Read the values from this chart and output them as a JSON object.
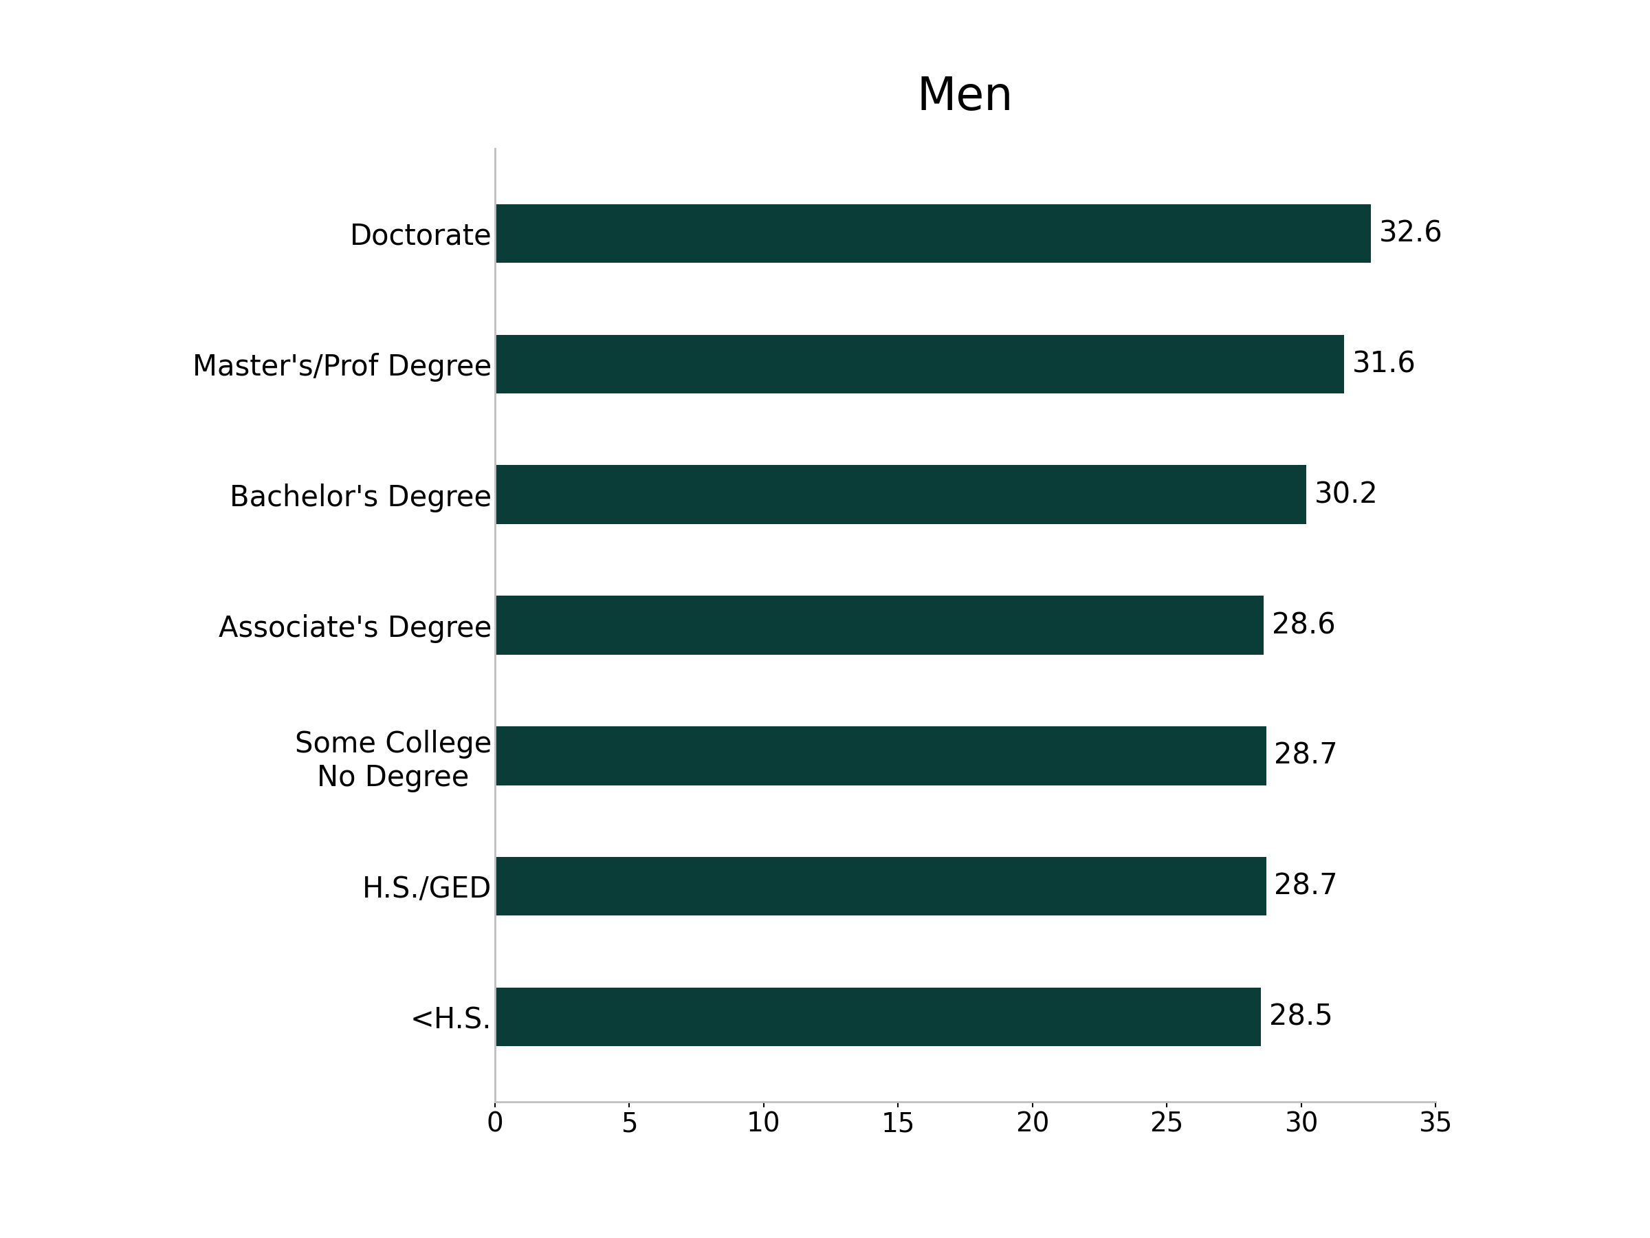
{
  "title": "Men",
  "categories": [
    "Doctorate",
    "Master's/Prof Degree",
    "Bachelor's Degree",
    "Associate's Degree",
    "Some College\nNo Degree",
    "H.S./GED",
    "<H.S."
  ],
  "values": [
    32.6,
    31.6,
    30.2,
    28.6,
    28.7,
    28.7,
    28.5
  ],
  "bar_color": "#0a3d38",
  "background_color": "#ffffff",
  "xlim": [
    0,
    35
  ],
  "xticks": [
    0,
    5,
    10,
    15,
    20,
    25,
    30,
    35
  ],
  "title_fontsize": 48,
  "label_fontsize": 30,
  "tick_fontsize": 28,
  "value_fontsize": 30,
  "bar_height": 0.45,
  "spine_color": "#c0c0c0"
}
